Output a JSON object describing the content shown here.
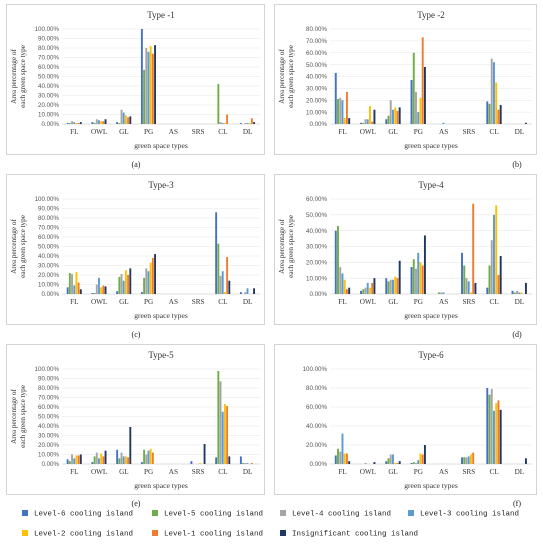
{
  "series_meta": [
    {
      "name": "Level-6 cooling island",
      "color": "#4472c4"
    },
    {
      "name": "Level-5 cooling island",
      "color": "#70ad47"
    },
    {
      "name": "Level-4 cooling island",
      "color": "#a5a5a5"
    },
    {
      "name": "Level-3 cooling island",
      "color": "#5b9bd5"
    },
    {
      "name": "Level-2 cooling island",
      "color": "#ffc000"
    },
    {
      "name": "Level-1 cooling island",
      "color": "#ed7d31"
    },
    {
      "name": "Insignificant cooling island",
      "color": "#1f3864"
    }
  ],
  "chart_data": [
    {
      "type": "bar",
      "title": "Type -1",
      "sublabel": "(a)",
      "xlabel": "green space types",
      "ylabel": "Area percentage of each green space type",
      "categories": [
        "FL",
        "OWL",
        "GL",
        "PG",
        "AS",
        "SRS",
        "CL",
        "DL"
      ],
      "ylim": [
        0,
        100
      ],
      "ytick_step": 10,
      "ytick_labels": [
        "0.00%",
        "10.00%",
        "20.00%",
        "30.00%",
        "40.00%",
        "50.00%",
        "60.00%",
        "70.00%",
        "80.00%",
        "90.00%",
        "100.00%"
      ],
      "series": [
        {
          "name": "Level-6 cooling island",
          "values": [
            1,
            2,
            2,
            100,
            0,
            0,
            0,
            1
          ]
        },
        {
          "name": "Level-5 cooling island",
          "values": [
            1,
            1,
            1,
            57,
            0,
            0,
            42,
            0
          ]
        },
        {
          "name": "Level-4 cooling island",
          "values": [
            3,
            5,
            15,
            80,
            0,
            0,
            2,
            1
          ]
        },
        {
          "name": "Level-3 cooling island",
          "values": [
            2,
            4,
            12,
            76,
            0,
            0,
            1,
            1
          ]
        },
        {
          "name": "Level-2 cooling island",
          "values": [
            1,
            3,
            9,
            82,
            0,
            0,
            1,
            1
          ]
        },
        {
          "name": "Level-1 cooling island",
          "values": [
            1,
            3,
            7,
            74,
            0,
            0,
            10,
            6
          ]
        },
        {
          "name": "Insignificant cooling island",
          "values": [
            2,
            5,
            8,
            83,
            0,
            0,
            0,
            2
          ]
        }
      ]
    },
    {
      "type": "bar",
      "title": "Type -2",
      "sublabel": "(b)",
      "xlabel": "green space types",
      "ylabel": "Area percentage of each green space type",
      "categories": [
        "FL",
        "OWL",
        "GL",
        "PG",
        "AS",
        "SRS",
        "CL",
        "DL"
      ],
      "ylim": [
        0,
        80
      ],
      "ytick_step": 10,
      "ytick_labels": [
        "0.00%",
        "10.00%",
        "20.00%",
        "30.00%",
        "40.00%",
        "50.00%",
        "60.00%",
        "70.00%",
        "80.00%"
      ],
      "series": [
        {
          "name": "Level-6 cooling island",
          "values": [
            43,
            1,
            4,
            37,
            0,
            0,
            19,
            0
          ]
        },
        {
          "name": "Level-5 cooling island",
          "values": [
            21,
            1,
            7,
            60,
            0,
            0,
            17,
            0
          ]
        },
        {
          "name": "Level-4 cooling island",
          "values": [
            22,
            4,
            20,
            27,
            0,
            0,
            55,
            0
          ]
        },
        {
          "name": "Level-3 cooling island",
          "values": [
            20,
            4,
            12,
            10,
            1,
            0,
            52,
            0
          ]
        },
        {
          "name": "Level-2 cooling island",
          "values": [
            5,
            15,
            14,
            22,
            0,
            0,
            35,
            0
          ]
        },
        {
          "name": "Level-1 cooling island",
          "values": [
            27,
            2,
            11,
            73,
            0,
            0,
            12,
            0
          ]
        },
        {
          "name": "Insignificant cooling island",
          "values": [
            5,
            12,
            14,
            48,
            0,
            0,
            16,
            1
          ]
        }
      ]
    },
    {
      "type": "bar",
      "title": "Type-3",
      "sublabel": "(c)",
      "xlabel": "green space types",
      "ylabel": "Area percentage of each green space type",
      "categories": [
        "FL",
        "OWL",
        "GL",
        "PG",
        "AS",
        "SRS",
        "CL",
        "DL"
      ],
      "ylim": [
        0,
        100
      ],
      "ytick_step": 10,
      "ytick_labels": [
        "0.00%",
        "10.00%",
        "20.00%",
        "30.00%",
        "40.00%",
        "50.00%",
        "60.00%",
        "70.00%",
        "80.00%",
        "90.00%",
        "100.00%"
      ],
      "series": [
        {
          "name": "Level-6 cooling island",
          "values": [
            7,
            1,
            3,
            2,
            0,
            0,
            86,
            2
          ]
        },
        {
          "name": "Level-5 cooling island",
          "values": [
            22,
            1,
            18,
            17,
            0,
            0,
            53,
            0
          ]
        },
        {
          "name": "Level-4 cooling island",
          "values": [
            21,
            10,
            21,
            27,
            0,
            0,
            19,
            2
          ]
        },
        {
          "name": "Level-3 cooling island",
          "values": [
            9,
            17,
            14,
            24,
            0,
            0,
            24,
            6
          ]
        },
        {
          "name": "Level-2 cooling island",
          "values": [
            23,
            7,
            25,
            33,
            0,
            0,
            2,
            0
          ]
        },
        {
          "name": "Level-1 cooling island",
          "values": [
            12,
            9,
            20,
            38,
            0,
            0,
            39,
            0
          ]
        },
        {
          "name": "Insignificant cooling island",
          "values": [
            5,
            8,
            27,
            42,
            0,
            0,
            14,
            6
          ]
        }
      ]
    },
    {
      "type": "bar",
      "title": "Type-4",
      "sublabel": "(d)",
      "xlabel": "green space types",
      "ylabel": "Area percentage of each green space type",
      "categories": [
        "FL",
        "OWL",
        "GL",
        "PG",
        "AS",
        "SRS",
        "CL",
        "DL"
      ],
      "ylim": [
        0,
        60
      ],
      "ytick_step": 10,
      "ytick_labels": [
        "0.00%",
        "10.00%",
        "20.00%",
        "30.00%",
        "40.00%",
        "50.00%",
        "60.00%"
      ],
      "series": [
        {
          "name": "Level-6 cooling island",
          "values": [
            40,
            2,
            10,
            17,
            0,
            26,
            4,
            2
          ]
        },
        {
          "name": "Level-5 cooling island",
          "values": [
            43,
            3,
            8,
            22,
            1,
            18,
            18,
            1
          ]
        },
        {
          "name": "Level-4 cooling island",
          "values": [
            17,
            4,
            9,
            16,
            1,
            10,
            34,
            2
          ]
        },
        {
          "name": "Level-3 cooling island",
          "values": [
            13,
            7,
            9,
            26,
            1,
            8,
            50,
            1
          ]
        },
        {
          "name": "Level-2 cooling island",
          "values": [
            9,
            4,
            11,
            20,
            0,
            1,
            56,
            1
          ]
        },
        {
          "name": "Level-1 cooling island",
          "values": [
            3,
            7,
            10,
            18,
            0,
            57,
            12,
            0
          ]
        },
        {
          "name": "Insignificant cooling island",
          "values": [
            4,
            10,
            21,
            37,
            0,
            7,
            24,
            7
          ]
        }
      ]
    },
    {
      "type": "bar",
      "title": "Type-5",
      "sublabel": "(e)",
      "xlabel": "green space types",
      "ylabel": "Area percentage of each green space type",
      "categories": [
        "FL",
        "OWL",
        "GL",
        "PG",
        "AS",
        "SRS",
        "CL",
        "DL"
      ],
      "ylim": [
        0,
        100
      ],
      "ytick_step": 10,
      "ytick_labels": [
        "0.00%",
        "10.00%",
        "20.00%",
        "30.00%",
        "40.00%",
        "50.00%",
        "60.00%",
        "70.00%",
        "80.00%",
        "90.00%",
        "100.00%"
      ],
      "series": [
        {
          "name": "Level-6 cooling island",
          "values": [
            5,
            2,
            15,
            2,
            0,
            3,
            7,
            8
          ]
        },
        {
          "name": "Level-5 cooling island",
          "values": [
            3,
            8,
            6,
            15,
            0,
            0,
            98,
            1
          ]
        },
        {
          "name": "Level-4 cooling island",
          "values": [
            10,
            12,
            12,
            10,
            0,
            0,
            87,
            1
          ]
        },
        {
          "name": "Level-3 cooling island",
          "values": [
            6,
            6,
            8,
            14,
            0,
            0,
            55,
            1
          ]
        },
        {
          "name": "Level-2 cooling island",
          "values": [
            9,
            11,
            8,
            16,
            0,
            1,
            63,
            0
          ]
        },
        {
          "name": "Level-1 cooling island",
          "values": [
            9,
            8,
            7,
            12,
            0,
            0,
            61,
            1
          ]
        },
        {
          "name": "Insignificant cooling island",
          "values": [
            10,
            14,
            39,
            0,
            0,
            21,
            8,
            0
          ]
        }
      ]
    },
    {
      "type": "bar",
      "title": "Type-6",
      "sublabel": "(f)",
      "xlabel": "green space types",
      "ylabel": "",
      "categories": [
        "FL",
        "OWL",
        "GL",
        "PG",
        "AS",
        "SRS",
        "CL",
        "DL"
      ],
      "ylim": [
        0,
        100
      ],
      "ytick_step": 20,
      "ytick_labels": [
        "0.00%",
        "20.00%",
        "40.00%",
        "60.00%",
        "80.00%",
        "100.00%"
      ],
      "series": [
        {
          "name": "Level-6 cooling island",
          "values": [
            9,
            0,
            3,
            1,
            0,
            7,
            80,
            0
          ]
        },
        {
          "name": "Level-5 cooling island",
          "values": [
            16,
            0,
            6,
            2,
            0,
            7,
            73,
            0
          ]
        },
        {
          "name": "Level-4 cooling island",
          "values": [
            13,
            1,
            10,
            1,
            0,
            7,
            79,
            0
          ]
        },
        {
          "name": "Level-3 cooling island",
          "values": [
            32,
            0,
            10,
            4,
            0,
            8,
            56,
            0
          ]
        },
        {
          "name": "Level-2 cooling island",
          "values": [
            11,
            0,
            1,
            11,
            0,
            10,
            64,
            0
          ]
        },
        {
          "name": "Level-1 cooling island",
          "values": [
            11,
            0,
            1,
            10,
            0,
            12,
            67,
            0
          ]
        },
        {
          "name": "Insignificant cooling island",
          "values": [
            3,
            2,
            3,
            20,
            0,
            0,
            57,
            6
          ]
        }
      ]
    }
  ]
}
